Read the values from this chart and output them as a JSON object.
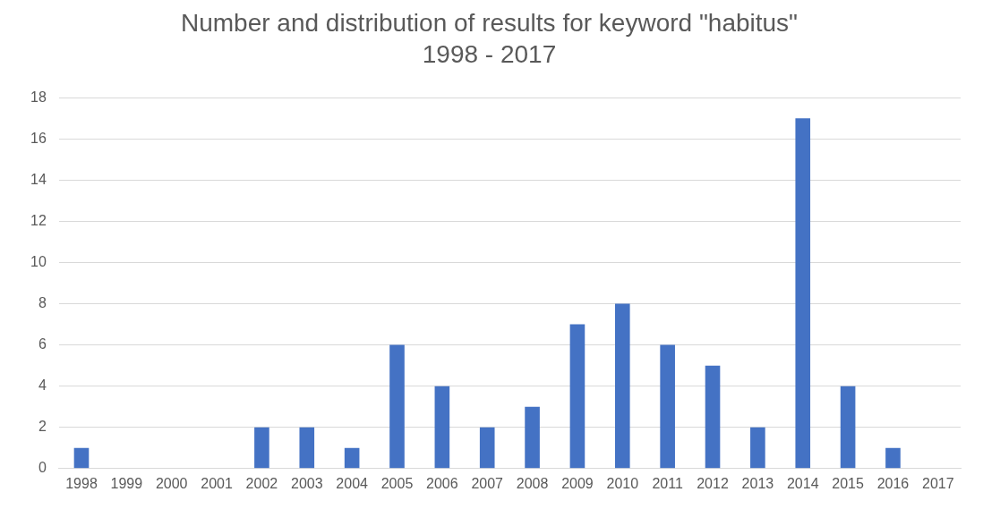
{
  "chart_data": {
    "type": "bar",
    "title": "Number and distribution of results for keyword \"habitus\"",
    "subtitle": "1998 - 2017",
    "categories": [
      "1998",
      "1999",
      "2000",
      "2001",
      "2002",
      "2003",
      "2004",
      "2005",
      "2006",
      "2007",
      "2008",
      "2009",
      "2010",
      "2011",
      "2012",
      "2013",
      "2014",
      "2015",
      "2016",
      "2017"
    ],
    "values": [
      1,
      0,
      0,
      0,
      2,
      2,
      1,
      6,
      4,
      2,
      3,
      7,
      8,
      6,
      5,
      2,
      17,
      4,
      1,
      0
    ],
    "color": "#4472c4",
    "ylim": [
      0,
      18
    ],
    "yticks": [
      0,
      2,
      4,
      6,
      8,
      10,
      12,
      14,
      16,
      18
    ],
    "grid": "y",
    "legend": false
  }
}
